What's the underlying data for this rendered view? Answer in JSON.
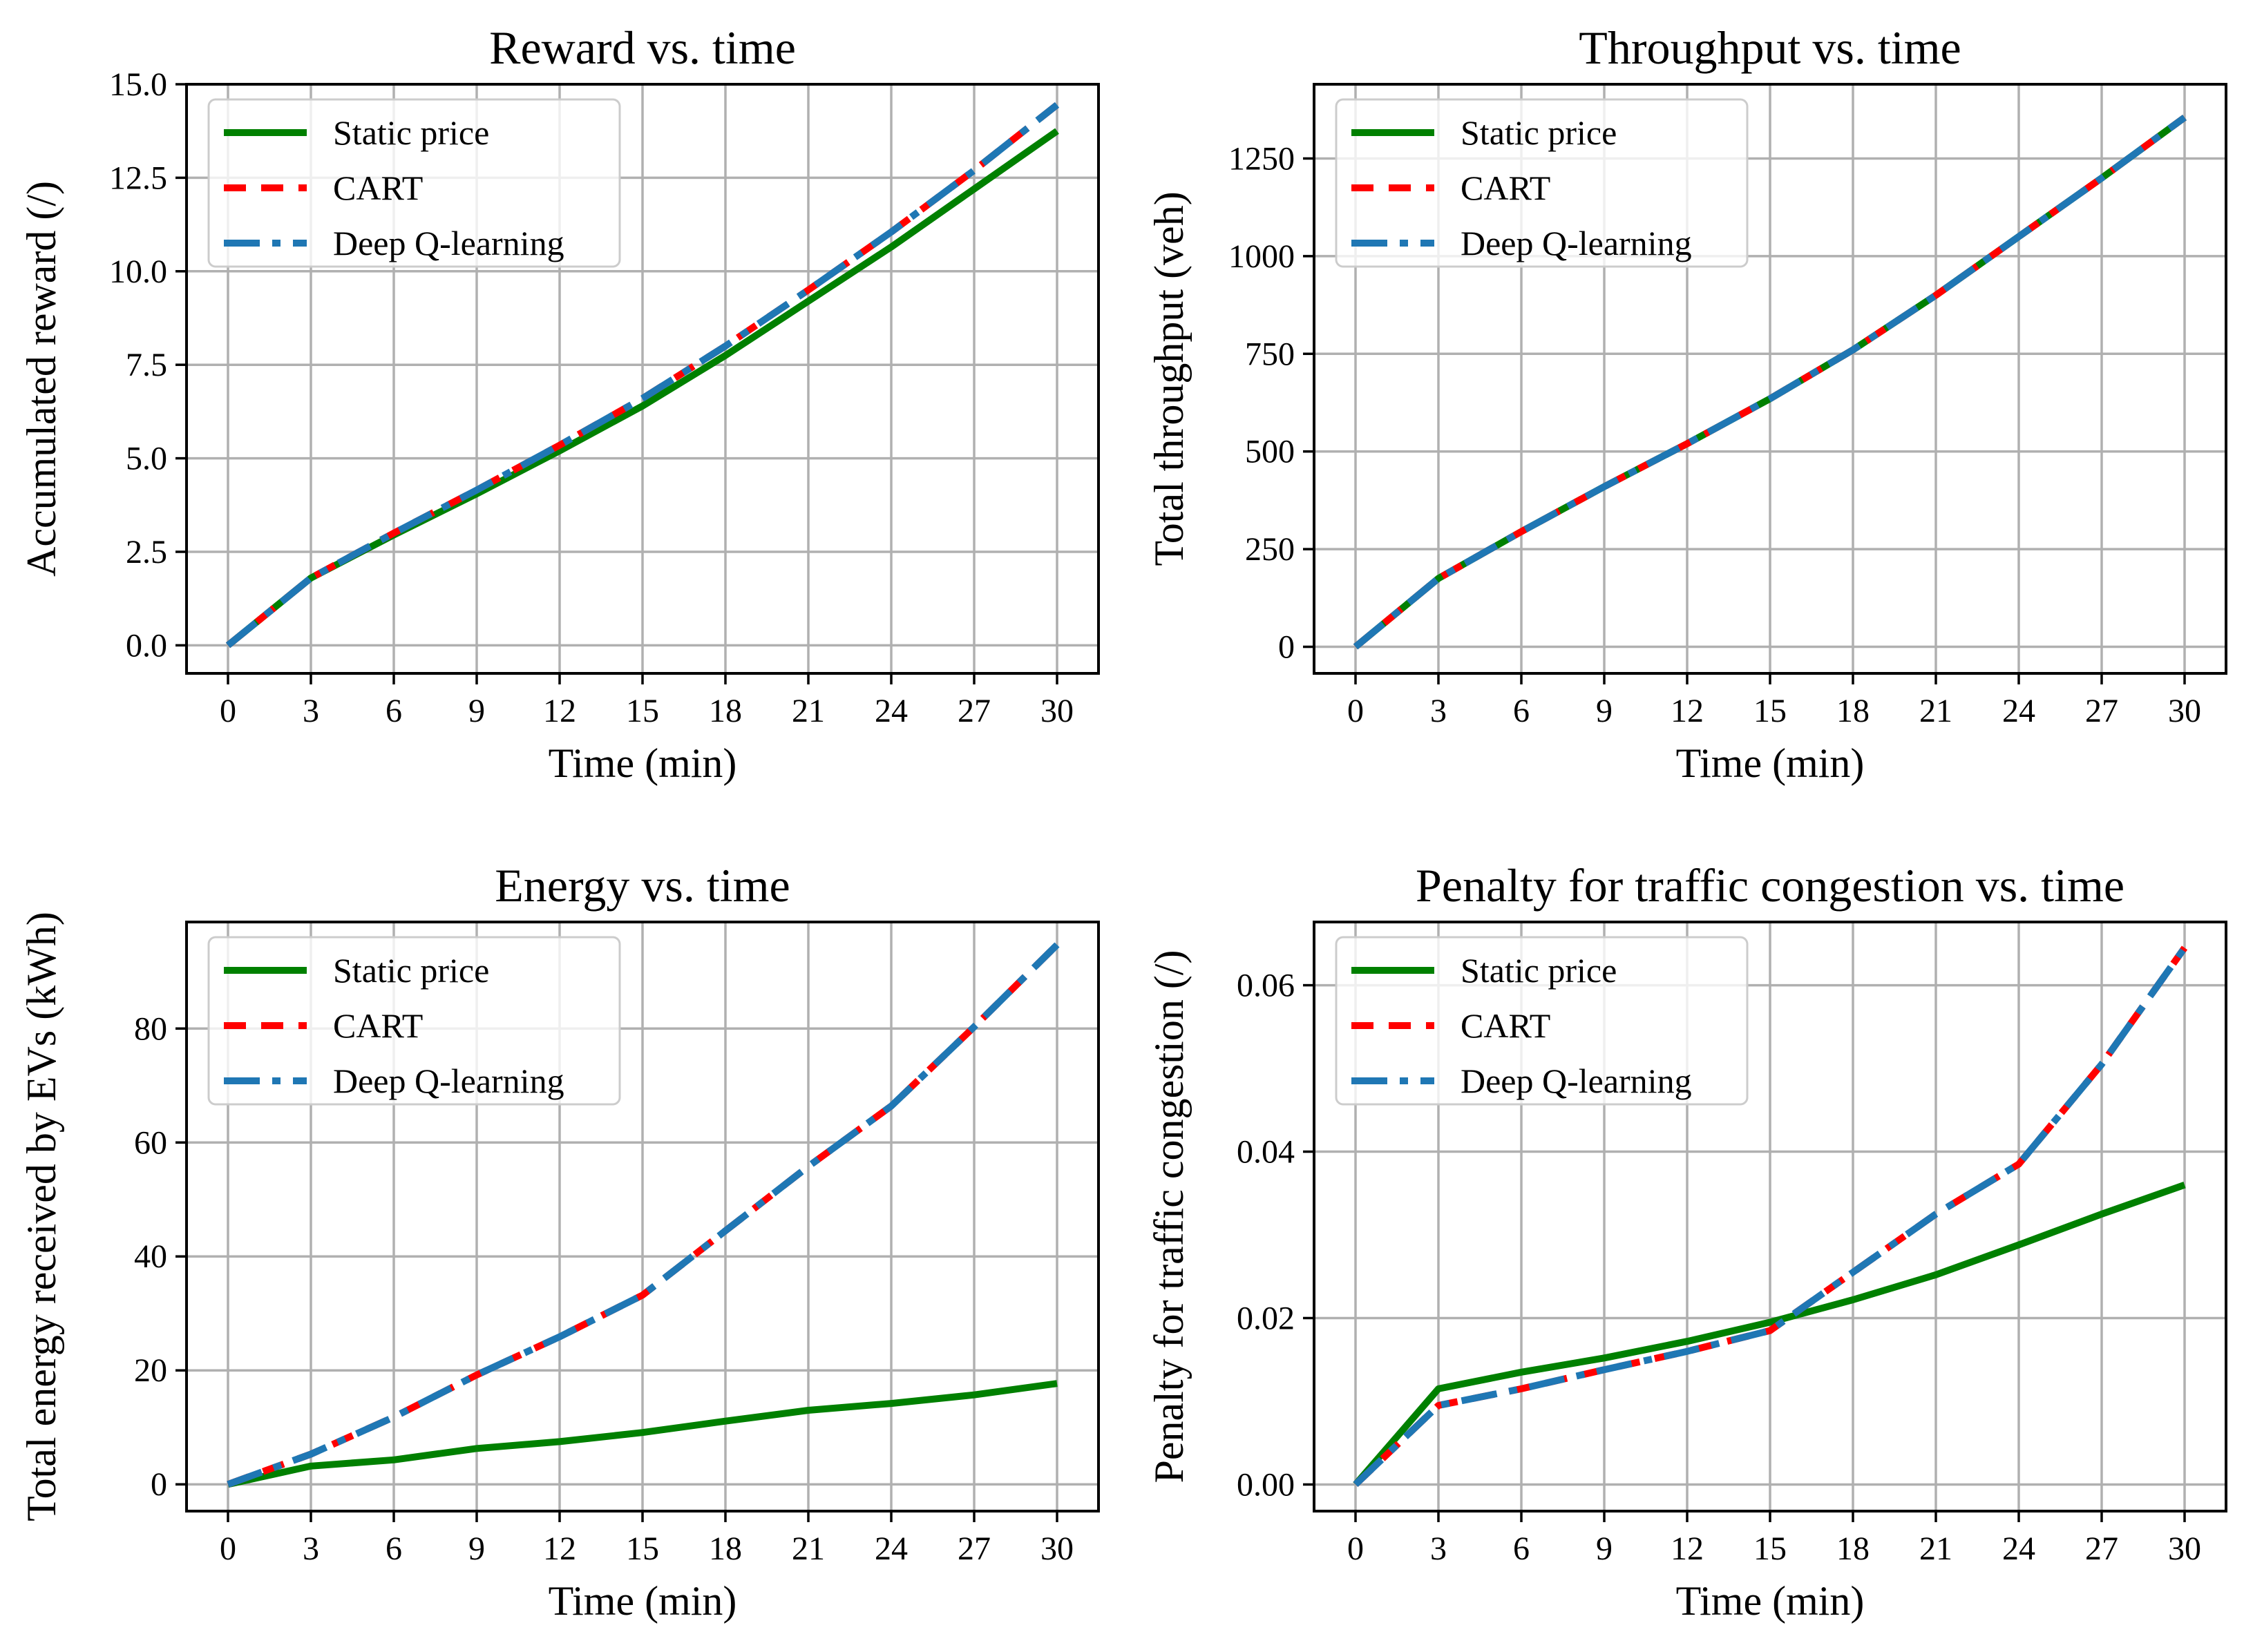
{
  "chart_data": [
    {
      "type": "line",
      "title": "Reward vs. time",
      "xlabel": "Time (min)",
      "ylabel": "Accumulated reward (/)",
      "xlim": [
        -1.5,
        31.5
      ],
      "ylim": [
        -0.75,
        15.0
      ],
      "xticks": [
        0,
        3,
        6,
        9,
        12,
        15,
        18,
        21,
        24,
        27,
        30
      ],
      "xtick_labels": [
        "0",
        "3",
        "6",
        "9",
        "12",
        "15",
        "18",
        "21",
        "24",
        "27",
        "30"
      ],
      "yticks": [
        0,
        2.5,
        5,
        7.5,
        10,
        12.5,
        15
      ],
      "ytick_labels": [
        "0.0",
        "2.5",
        "5.0",
        "7.5",
        "10.0",
        "12.5",
        "15.0"
      ],
      "grid": true,
      "legend": "upper-left",
      "x": [
        0,
        3,
        6,
        9,
        12,
        15,
        18,
        21,
        24,
        27,
        30
      ],
      "series": [
        {
          "name": "Static price",
          "values": [
            0,
            1.8,
            2.95,
            4.05,
            5.2,
            6.4,
            7.75,
            9.2,
            10.65,
            12.2,
            13.75
          ]
        },
        {
          "name": "CART",
          "values": [
            0,
            1.8,
            3.0,
            4.15,
            5.35,
            6.6,
            8.0,
            9.5,
            11.05,
            12.7,
            14.45
          ]
        },
        {
          "name": "Deep Q-learning",
          "values": [
            0,
            1.8,
            3.0,
            4.15,
            5.35,
            6.6,
            8.0,
            9.5,
            11.05,
            12.7,
            14.45
          ]
        }
      ]
    },
    {
      "type": "line",
      "title": "Throughput vs. time",
      "xlabel": "Time (min)",
      "ylabel": "Total throughput (veh)",
      "xlim": [
        -1.5,
        31.5
      ],
      "ylim": [
        -68,
        1440
      ],
      "xticks": [
        0,
        3,
        6,
        9,
        12,
        15,
        18,
        21,
        24,
        27,
        30
      ],
      "xtick_labels": [
        "0",
        "3",
        "6",
        "9",
        "12",
        "15",
        "18",
        "21",
        "24",
        "27",
        "30"
      ],
      "yticks": [
        0,
        250,
        500,
        750,
        1000,
        1250
      ],
      "ytick_labels": [
        "0",
        "250",
        "500",
        "750",
        "1000",
        "1250"
      ],
      "grid": true,
      "legend": "upper-left",
      "x": [
        0,
        3,
        6,
        9,
        12,
        15,
        18,
        21,
        24,
        27,
        30
      ],
      "series": [
        {
          "name": "Static price",
          "values": [
            0,
            175,
            295,
            410,
            520,
            635,
            760,
            900,
            1050,
            1200,
            1355
          ]
        },
        {
          "name": "CART",
          "values": [
            0,
            175,
            295,
            410,
            520,
            635,
            760,
            900,
            1050,
            1200,
            1355
          ]
        },
        {
          "name": "Deep Q-learning",
          "values": [
            0,
            175,
            295,
            410,
            520,
            635,
            760,
            900,
            1050,
            1200,
            1355
          ]
        }
      ]
    },
    {
      "type": "line",
      "title": "Energy vs. time",
      "xlabel": "Time (min)",
      "ylabel": "Total energy received by EVs (kWh)",
      "xlim": [
        -1.5,
        31.5
      ],
      "ylim": [
        -4.7,
        98.7
      ],
      "xticks": [
        0,
        3,
        6,
        9,
        12,
        15,
        18,
        21,
        24,
        27,
        30
      ],
      "xtick_labels": [
        "0",
        "3",
        "6",
        "9",
        "12",
        "15",
        "18",
        "21",
        "24",
        "27",
        "30"
      ],
      "yticks": [
        0,
        20,
        40,
        60,
        80
      ],
      "ytick_labels": [
        "0",
        "20",
        "40",
        "60",
        "80"
      ],
      "grid": true,
      "legend": "upper-left",
      "x": [
        0,
        3,
        6,
        9,
        12,
        15,
        18,
        21,
        24,
        27,
        30
      ],
      "series": [
        {
          "name": "Static price",
          "values": [
            0,
            3.2,
            4.3,
            6.3,
            7.5,
            9.1,
            11.1,
            13.0,
            14.2,
            15.7,
            17.7
          ]
        },
        {
          "name": "CART",
          "values": [
            0,
            5.3,
            11.8,
            19.2,
            25.9,
            33.2,
            44.5,
            55.8,
            66.4,
            80.3,
            94.7
          ]
        },
        {
          "name": "Deep Q-learning",
          "values": [
            0,
            5.3,
            11.8,
            19.2,
            25.9,
            33.2,
            44.5,
            55.8,
            66.4,
            80.3,
            94.7
          ]
        }
      ]
    },
    {
      "type": "line",
      "title": "Penalty for traffic congestion vs. time",
      "xlabel": "Time (min)",
      "ylabel": "Penalty for traffic congestion (/)",
      "xlim": [
        -1.5,
        31.5
      ],
      "ylim": [
        -0.0032,
        0.0676
      ],
      "xticks": [
        0,
        3,
        6,
        9,
        12,
        15,
        18,
        21,
        24,
        27,
        30
      ],
      "xtick_labels": [
        "0",
        "3",
        "6",
        "9",
        "12",
        "15",
        "18",
        "21",
        "24",
        "27",
        "30"
      ],
      "yticks": [
        0,
        0.02,
        0.04,
        0.06
      ],
      "ytick_labels": [
        "0.00",
        "0.02",
        "0.04",
        "0.06"
      ],
      "grid": true,
      "legend": "upper-left",
      "x": [
        0,
        3,
        6,
        9,
        12,
        15,
        18,
        21,
        24,
        27,
        30
      ],
      "series": [
        {
          "name": "Static price",
          "values": [
            0,
            0.0115,
            0.0135,
            0.0152,
            0.0172,
            0.0195,
            0.0222,
            0.0252,
            0.0288,
            0.0325,
            0.036
          ]
        },
        {
          "name": "CART",
          "values": [
            0,
            0.0095,
            0.0115,
            0.0138,
            0.016,
            0.0185,
            0.0255,
            0.0325,
            0.0385,
            0.0505,
            0.0645
          ]
        },
        {
          "name": "Deep Q-learning",
          "values": [
            0,
            0.0095,
            0.0115,
            0.0138,
            0.016,
            0.0185,
            0.0255,
            0.0325,
            0.0385,
            0.0505,
            0.0645
          ]
        }
      ]
    }
  ],
  "series_styles": [
    {
      "color": "#008000",
      "dash": "none"
    },
    {
      "color": "#ff0000",
      "dash": "32 22"
    },
    {
      "color": "#1f77b4",
      "dash": "52 18 12 18"
    }
  ]
}
